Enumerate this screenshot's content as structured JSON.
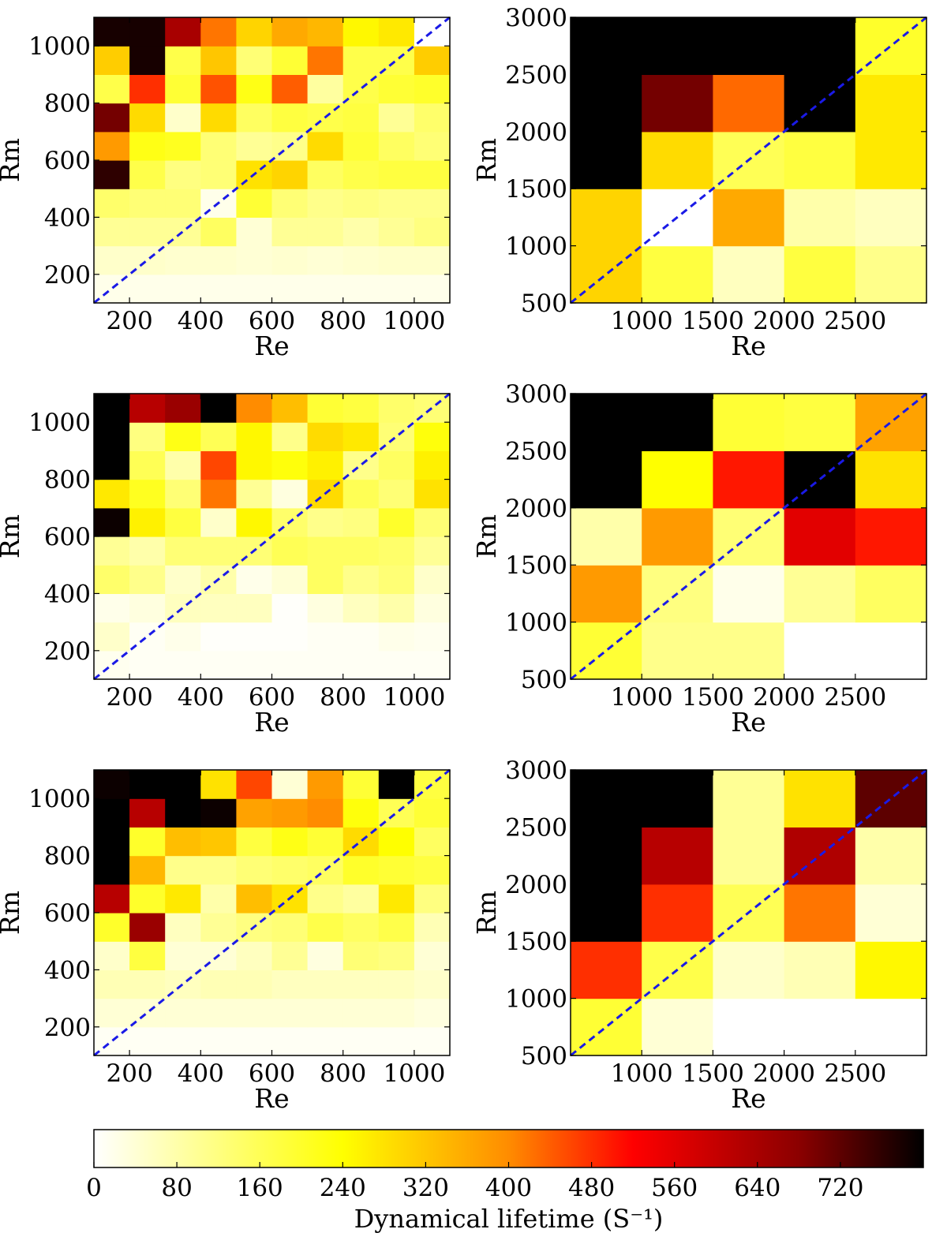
{
  "colormap": {
    "name": "afmhot_r",
    "stops": [
      "#ffffff",
      "#ffff00",
      "#ff8c00",
      "#ff0000",
      "#8b0000",
      "#000000"
    ]
  },
  "chart_data": [
    {
      "type": "heatmap",
      "panel": "top-left",
      "xlabel": "Re",
      "ylabel": "Rm",
      "xlim": [
        100,
        1100
      ],
      "ylim": [
        100,
        1100
      ],
      "xticks": [
        200,
        400,
        600,
        800,
        1000
      ],
      "yticks": [
        200,
        400,
        600,
        800,
        1000
      ],
      "x_edges": [
        100,
        200,
        300,
        400,
        500,
        600,
        700,
        800,
        900,
        1000,
        1100
      ],
      "y_edges": [
        100,
        200,
        300,
        400,
        500,
        600,
        700,
        800,
        900,
        1000,
        1100
      ],
      "values": [
        [
          20,
          20,
          20,
          20,
          20,
          20,
          20,
          20,
          20,
          20
        ],
        [
          50,
          50,
          45,
          45,
          40,
          45,
          40,
          45,
          50,
          50
        ],
        [
          100,
          100,
          100,
          150,
          40,
          100,
          100,
          80,
          100,
          120
        ],
        [
          140,
          130,
          130,
          20,
          190,
          130,
          110,
          120,
          110,
          110
        ],
        [
          760,
          170,
          120,
          130,
          280,
          300,
          150,
          170,
          180,
          180
        ],
        [
          380,
          220,
          210,
          130,
          100,
          110,
          290,
          190,
          150,
          130
        ],
        [
          700,
          290,
          50,
          290,
          150,
          180,
          170,
          180,
          100,
          140
        ],
        [
          170,
          480,
          190,
          450,
          220,
          440,
          90,
          170,
          190,
          200
        ],
        [
          310,
          780,
          170,
          320,
          130,
          190,
          420,
          170,
          170,
          310
        ],
        [
          780,
          780,
          640,
          420,
          300,
          360,
          340,
          250,
          270,
          0
        ]
      ]
    },
    {
      "type": "heatmap",
      "panel": "top-right",
      "xlabel": "Re",
      "ylabel": "Rm",
      "xlim": [
        500,
        3000
      ],
      "ylim": [
        500,
        3000
      ],
      "xticks": [
        1000,
        1500,
        2000,
        2500
      ],
      "yticks": [
        500,
        1000,
        1500,
        2000,
        2500,
        3000
      ],
      "x_edges": [
        500,
        1000,
        1500,
        2000,
        2500,
        3000
      ],
      "y_edges": [
        500,
        1000,
        1500,
        2000,
        2500,
        3000
      ],
      "values": [
        [
          300,
          180,
          60,
          180,
          110
        ],
        [
          300,
          0,
          360,
          80,
          60
        ],
        [
          800,
          290,
          160,
          180,
          270
        ],
        [
          800,
          700,
          430,
          800,
          270
        ],
        [
          800,
          800,
          800,
          800,
          200
        ]
      ]
    },
    {
      "type": "heatmap",
      "panel": "middle-left",
      "xlabel": "Re",
      "ylabel": "Rm",
      "xlim": [
        100,
        1100
      ],
      "ylim": [
        100,
        1100
      ],
      "xticks": [
        200,
        400,
        600,
        800,
        1000
      ],
      "yticks": [
        200,
        400,
        600,
        800,
        1000
      ],
      "x_edges": [
        100,
        200,
        300,
        400,
        500,
        600,
        700,
        800,
        900,
        1000,
        1100
      ],
      "y_edges": [
        100,
        200,
        300,
        400,
        500,
        600,
        700,
        800,
        900,
        1000,
        1100
      ],
      "values": [
        [
          15,
          10,
          10,
          10,
          10,
          10,
          10,
          10,
          10,
          10
        ],
        [
          50,
          10,
          20,
          5,
          5,
          5,
          10,
          10,
          20,
          15
        ],
        [
          20,
          30,
          60,
          60,
          60,
          5,
          30,
          60,
          80,
          30
        ],
        [
          140,
          110,
          50,
          80,
          20,
          40,
          150,
          110,
          130,
          50
        ],
        [
          100,
          80,
          130,
          130,
          130,
          160,
          150,
          150,
          140,
          100
        ],
        [
          790,
          260,
          180,
          50,
          250,
          140,
          110,
          120,
          200,
          130
        ],
        [
          270,
          210,
          130,
          420,
          100,
          30,
          290,
          160,
          130,
          280
        ],
        [
          800,
          160,
          80,
          460,
          250,
          230,
          260,
          110,
          150,
          260
        ],
        [
          800,
          120,
          220,
          160,
          250,
          110,
          290,
          270,
          130,
          230
        ],
        [
          800,
          620,
          660,
          800,
          400,
          330,
          190,
          180,
          140,
          130
        ]
      ]
    },
    {
      "type": "heatmap",
      "panel": "middle-right",
      "xlabel": "Re",
      "ylabel": "Rm",
      "xlim": [
        500,
        3000
      ],
      "ylim": [
        500,
        3000
      ],
      "xticks": [
        1000,
        1500,
        2000,
        2500
      ],
      "yticks": [
        500,
        1000,
        1500,
        2000,
        2500,
        3000
      ],
      "x_edges": [
        500,
        1000,
        1500,
        2000,
        2500,
        3000
      ],
      "y_edges": [
        500,
        1000,
        1500,
        2000,
        2500,
        3000
      ],
      "values": [
        [
          190,
          110,
          110,
          0,
          0
        ],
        [
          380,
          120,
          20,
          100,
          150
        ],
        [
          80,
          380,
          130,
          560,
          500
        ],
        [
          800,
          240,
          500,
          800,
          280
        ],
        [
          800,
          800,
          190,
          180,
          370
        ]
      ]
    },
    {
      "type": "heatmap",
      "panel": "bottom-left",
      "xlabel": "Re",
      "ylabel": "Rm",
      "xlim": [
        100,
        1100
      ],
      "ylim": [
        100,
        1100
      ],
      "xticks": [
        200,
        400,
        600,
        800,
        1000
      ],
      "yticks": [
        200,
        400,
        600,
        800,
        1000
      ],
      "x_edges": [
        100,
        200,
        300,
        400,
        500,
        600,
        700,
        800,
        900,
        1000,
        1100
      ],
      "y_edges": [
        100,
        200,
        300,
        400,
        500,
        600,
        700,
        800,
        900,
        1000,
        1100
      ],
      "values": [
        [
          10,
          10,
          10,
          10,
          10,
          10,
          10,
          10,
          10,
          10
        ],
        [
          40,
          40,
          40,
          40,
          40,
          40,
          40,
          40,
          40,
          30
        ],
        [
          70,
          70,
          60,
          70,
          70,
          60,
          60,
          60,
          60,
          50
        ],
        [
          50,
          180,
          40,
          40,
          60,
          100,
          30,
          130,
          120,
          40
        ],
        [
          200,
          660,
          60,
          100,
          120,
          130,
          170,
          150,
          170,
          70
        ],
        [
          620,
          200,
          270,
          80,
          330,
          280,
          110,
          90,
          270,
          120
        ],
        [
          800,
          340,
          110,
          110,
          130,
          140,
          150,
          200,
          190,
          180
        ],
        [
          800,
          200,
          330,
          320,
          180,
          220,
          190,
          290,
          240,
          150
        ],
        [
          800,
          620,
          800,
          790,
          370,
          380,
          400,
          230,
          160,
          190
        ],
        [
          790,
          800,
          800,
          280,
          460,
          40,
          380,
          190,
          800,
          180
        ]
      ]
    },
    {
      "type": "heatmap",
      "panel": "bottom-right",
      "xlabel": "Re",
      "ylabel": "Rm",
      "xlim": [
        500,
        3000
      ],
      "ylim": [
        500,
        3000
      ],
      "xticks": [
        1000,
        1500,
        2000,
        2500
      ],
      "yticks": [
        500,
        1000,
        1500,
        2000,
        2500,
        3000
      ],
      "x_edges": [
        500,
        1000,
        1500,
        2000,
        2500,
        3000
      ],
      "y_edges": [
        500,
        1000,
        1500,
        2000,
        2500,
        3000
      ],
      "values": [
        [
          190,
          40,
          0,
          0,
          0
        ],
        [
          480,
          170,
          50,
          70,
          250
        ],
        [
          800,
          480,
          160,
          420,
          40
        ],
        [
          800,
          620,
          100,
          630,
          80
        ],
        [
          800,
          800,
          100,
          280,
          720
        ]
      ]
    },
    {
      "type": "colorbar",
      "label": "Dynamical lifetime (S⁻¹)",
      "range": [
        0,
        800
      ],
      "ticks": [
        0,
        80,
        160,
        240,
        320,
        400,
        480,
        560,
        640,
        720
      ]
    }
  ]
}
